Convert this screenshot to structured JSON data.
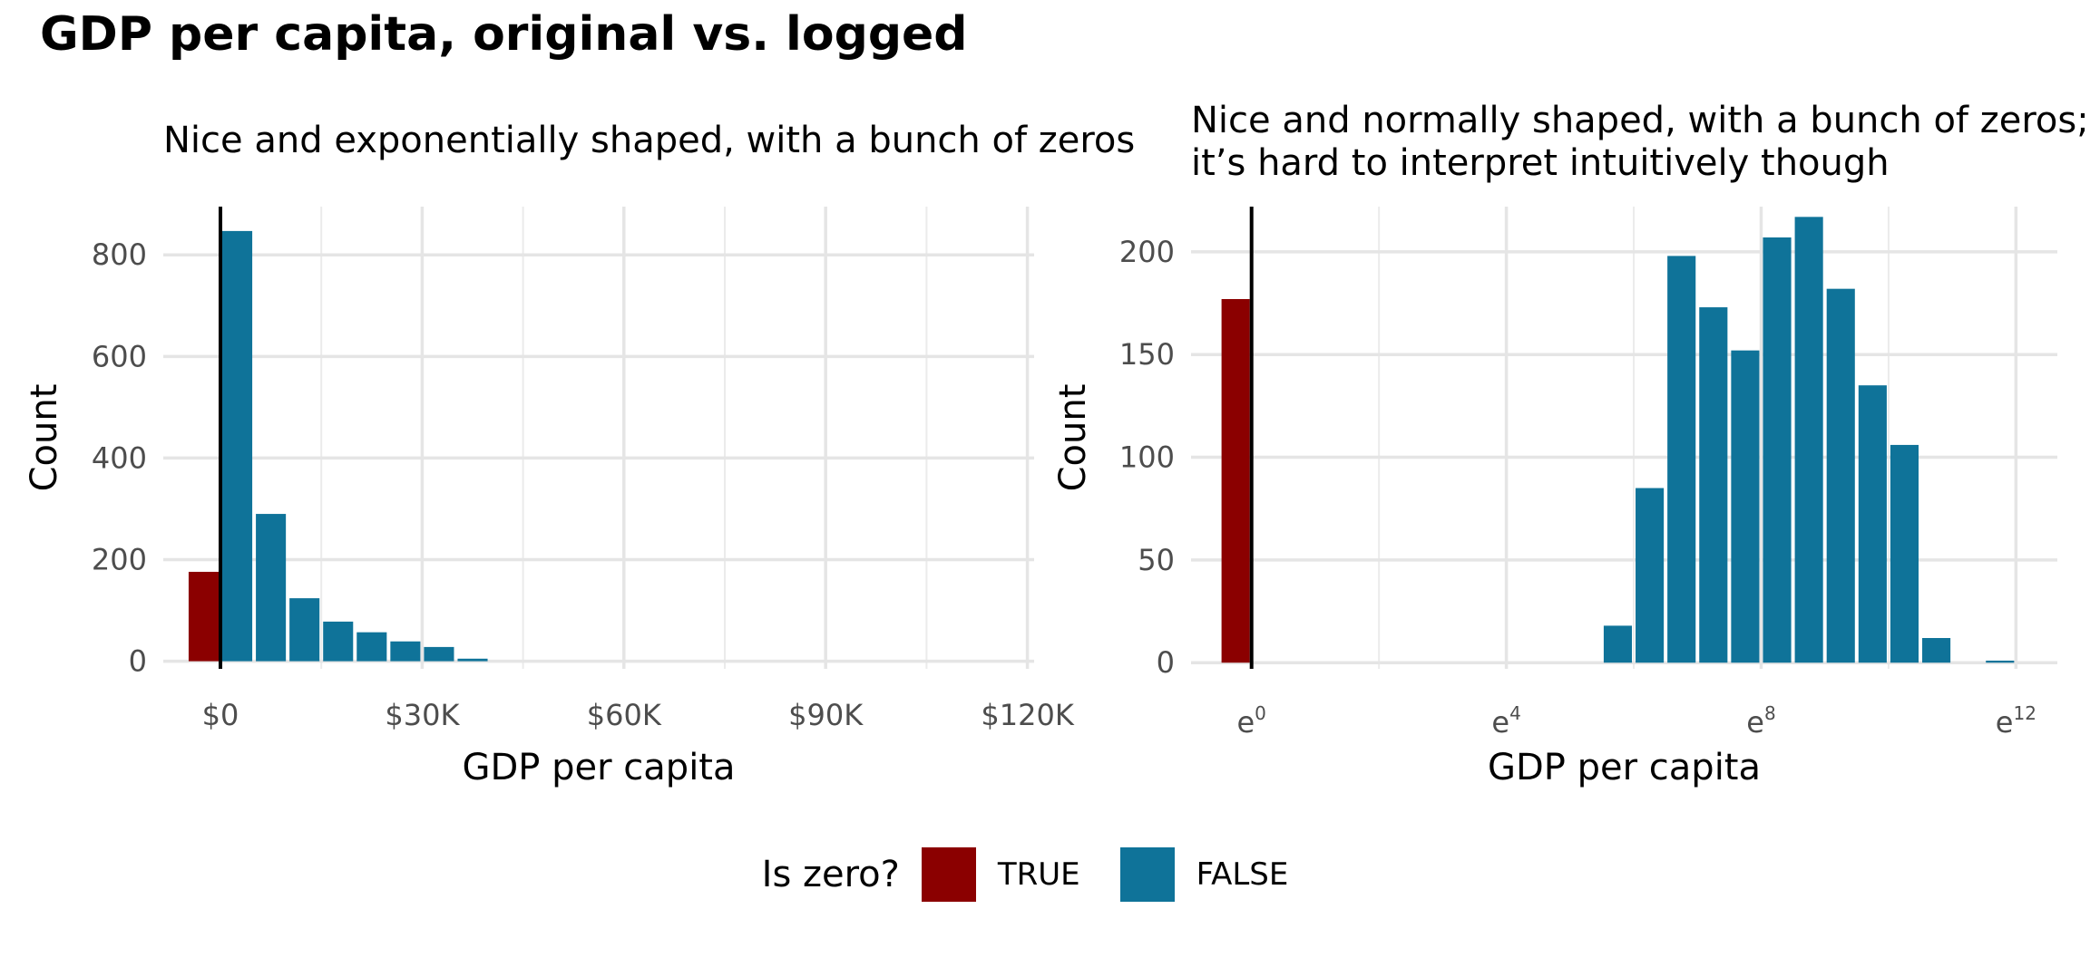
{
  "title": "GDP per capita, original vs. logged",
  "legend": {
    "title": "Is zero?",
    "items": [
      {
        "label": "TRUE",
        "color": "#8B0000"
      },
      {
        "label": "FALSE",
        "color": "#0F7399"
      }
    ]
  },
  "chart_data": [
    {
      "type": "bar",
      "subtitle": [
        "Nice and exponentially shaped, with a bunch of zeros"
      ],
      "xlabel": "GDP per capita",
      "ylabel": "Count",
      "xlim": [
        -8500,
        121000
      ],
      "ylim": [
        -15,
        895
      ],
      "x_ticks": [
        {
          "value": 0,
          "label": "$0"
        },
        {
          "value": 30000,
          "label": "$30K"
        },
        {
          "value": 60000,
          "label": "$60K"
        },
        {
          "value": 90000,
          "label": "$90K"
        },
        {
          "value": 120000,
          "label": "$120K"
        }
      ],
      "y_ticks": [
        0,
        200,
        400,
        600,
        800
      ],
      "grid": true,
      "zero_line_x": 0,
      "bin_width": 5000,
      "bars": [
        {
          "x": -2500,
          "count": 176,
          "is_zero": true
        },
        {
          "x": 2500,
          "count": 847,
          "is_zero": false
        },
        {
          "x": 7500,
          "count": 290,
          "is_zero": false
        },
        {
          "x": 12500,
          "count": 124,
          "is_zero": false
        },
        {
          "x": 17500,
          "count": 78,
          "is_zero": false
        },
        {
          "x": 22500,
          "count": 57,
          "is_zero": false
        },
        {
          "x": 27500,
          "count": 39,
          "is_zero": false
        },
        {
          "x": 32500,
          "count": 28,
          "is_zero": false
        },
        {
          "x": 37500,
          "count": 5,
          "is_zero": false
        }
      ]
    },
    {
      "type": "bar",
      "subtitle": [
        "Nice and normally shaped, with a bunch of zeros;",
        "it’s hard to interpret intuitively though"
      ],
      "xlabel": "GDP per capita",
      "ylabel": "Count",
      "xlim": [
        -0.95,
        12.65
      ],
      "ylim": [
        -3,
        222
      ],
      "x_ticks": [
        {
          "value": 0,
          "base": "e",
          "exp": "0"
        },
        {
          "value": 4,
          "base": "e",
          "exp": "4"
        },
        {
          "value": 8,
          "base": "e",
          "exp": "8"
        },
        {
          "value": 12,
          "base": "e",
          "exp": "12"
        }
      ],
      "y_ticks": [
        0,
        50,
        100,
        150,
        200
      ],
      "grid": true,
      "zero_line_x": 0,
      "bin_width": 0.5,
      "bars": [
        {
          "x": -0.25,
          "count": 177,
          "is_zero": true
        },
        {
          "x": 5.75,
          "count": 18,
          "is_zero": false
        },
        {
          "x": 6.25,
          "count": 85,
          "is_zero": false
        },
        {
          "x": 6.75,
          "count": 198,
          "is_zero": false
        },
        {
          "x": 7.25,
          "count": 173,
          "is_zero": false
        },
        {
          "x": 7.75,
          "count": 152,
          "is_zero": false
        },
        {
          "x": 8.25,
          "count": 207,
          "is_zero": false
        },
        {
          "x": 8.75,
          "count": 217,
          "is_zero": false
        },
        {
          "x": 9.25,
          "count": 182,
          "is_zero": false
        },
        {
          "x": 9.75,
          "count": 135,
          "is_zero": false
        },
        {
          "x": 10.25,
          "count": 106,
          "is_zero": false
        },
        {
          "x": 10.75,
          "count": 12,
          "is_zero": false
        },
        {
          "x": 11.75,
          "count": 1,
          "is_zero": false
        }
      ]
    }
  ]
}
